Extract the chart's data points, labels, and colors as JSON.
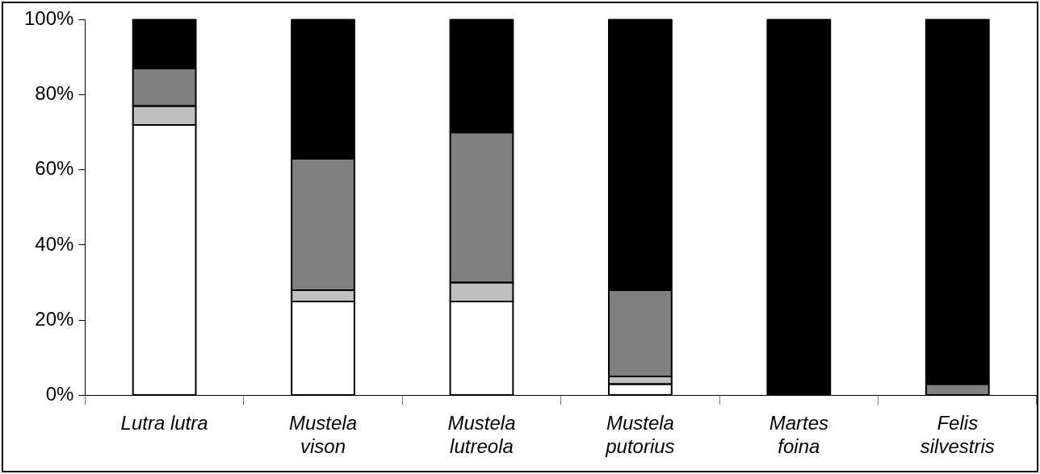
{
  "chart_data": {
    "type": "bar",
    "stacked": true,
    "categories": [
      "Lutra lutra",
      "Mustela vison",
      "Mustela lutreola",
      "Mustela putorius",
      "Martes foina",
      "Felis silvestris"
    ],
    "series": [
      {
        "color": "#ffffff",
        "values": [
          72,
          25,
          25,
          3,
          0,
          0
        ]
      },
      {
        "color": "#c0c0c0",
        "values": [
          5,
          3,
          5,
          2,
          0,
          0
        ]
      },
      {
        "color": "#808080",
        "values": [
          10,
          35,
          40,
          23,
          0,
          3
        ]
      },
      {
        "color": "#000000",
        "values": [
          13,
          37,
          30,
          72,
          100,
          97
        ]
      }
    ],
    "ylim": [
      0,
      100
    ],
    "yticks": [
      {
        "value": 0,
        "label": "0%"
      },
      {
        "value": 20,
        "label": "20%"
      },
      {
        "value": 40,
        "label": "40%"
      },
      {
        "value": 60,
        "label": "60%"
      },
      {
        "value": 80,
        "label": "80%"
      },
      {
        "value": 100,
        "label": "100%"
      }
    ],
    "grid": false,
    "legend": false
  }
}
